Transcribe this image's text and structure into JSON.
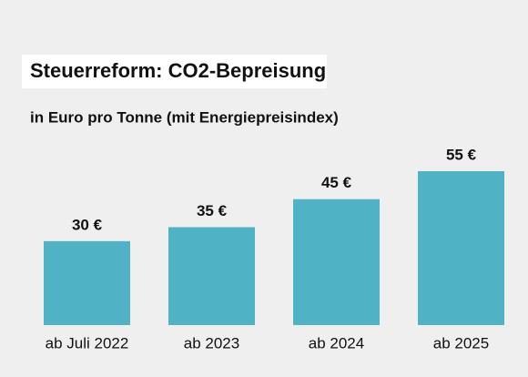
{
  "chart_data": {
    "type": "bar",
    "title": "Steuerreform: CO2-Bepreisung",
    "subtitle": "in Euro pro Tonne (mit Energiepreisindex)",
    "categories": [
      "ab Juli 2022",
      "ab 2023",
      "ab 2024",
      "ab 2025"
    ],
    "values": [
      30,
      35,
      45,
      55
    ],
    "value_labels": [
      "30 €",
      "35 €",
      "45 €",
      "55 €"
    ],
    "color": "#4fb3c5"
  }
}
